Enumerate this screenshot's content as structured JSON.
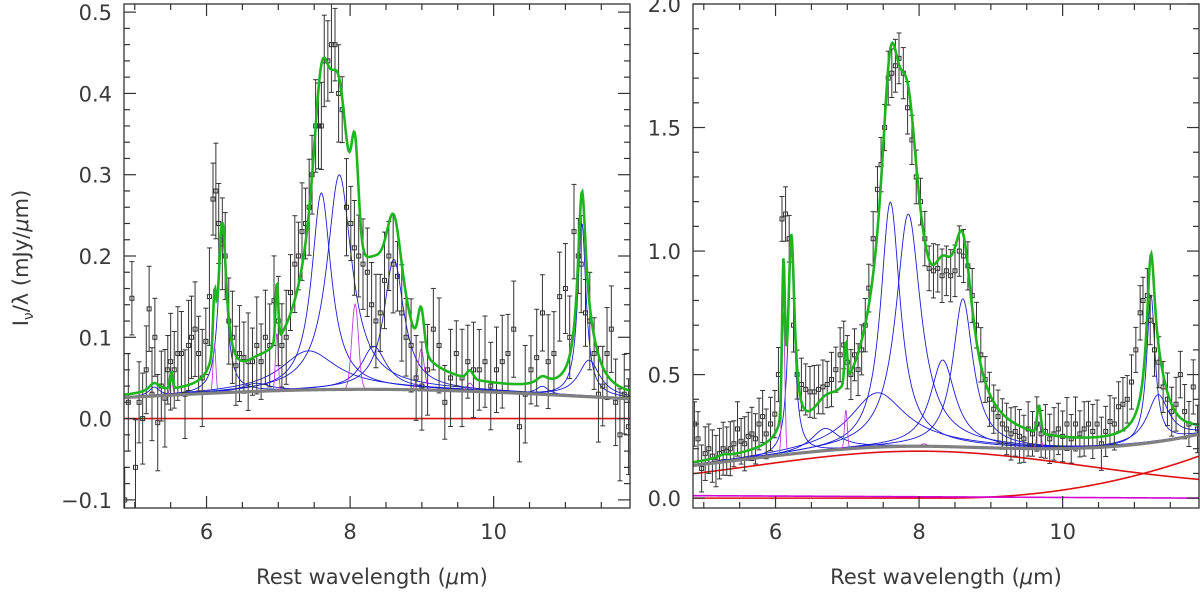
{
  "figure": {
    "ylabel_prefix": "I",
    "ylabel_nu": "ν",
    "ylabel_mid": "/λ (mJy/",
    "ylabel_mu": "μ",
    "ylabel_end": "m)",
    "xlabel_text": "Rest wavelength (",
    "xlabel_mu": "μ",
    "xlabel_end": "m)"
  },
  "colors": {
    "total_fit": "#1fb51f",
    "continuum_total": "#808080",
    "continuum_component": "#e01010",
    "pah_feature": "#1c1cd8",
    "gas_line": "#b640d8",
    "stellar_component": "#d400d4",
    "data": "#333333"
  },
  "chart_data": [
    {
      "type": "line",
      "name": "left-panel",
      "xlim": [
        4.85,
        11.9
      ],
      "ylim": [
        -0.11,
        0.51
      ],
      "xticks": [
        6,
        8,
        10
      ],
      "yticks": [
        -0.1,
        0.0,
        0.1,
        0.2,
        0.3,
        0.4,
        0.5
      ],
      "ytick_labels": [
        "−0.1",
        "0.0",
        "0.1",
        "0.2",
        "0.3",
        "0.4",
        "0.5"
      ],
      "xtick_labels": [
        "6",
        "8",
        "10"
      ],
      "continuum_components": [
        {
          "name": "hot-dust",
          "flat": 0.0
        }
      ],
      "continuum_total": {
        "base": 0.012,
        "amp": 0.024,
        "center": 8.2,
        "width": 3.2
      },
      "pah_features": [
        {
          "center": 5.27,
          "height": 0.011,
          "fwhm": 0.18
        },
        {
          "center": 6.22,
          "height": 0.195,
          "fwhm": 0.14
        },
        {
          "center": 6.69,
          "height": 0.01,
          "fwhm": 0.47
        },
        {
          "center": 7.42,
          "height": 0.048,
          "fwhm": 0.94
        },
        {
          "center": 7.6,
          "height": 0.242,
          "fwhm": 0.33
        },
        {
          "center": 7.85,
          "height": 0.264,
          "fwhm": 0.42
        },
        {
          "center": 8.33,
          "height": 0.053,
          "fwhm": 0.42
        },
        {
          "center": 8.61,
          "height": 0.16,
          "fwhm": 0.34
        },
        {
          "center": 10.68,
          "height": 0.01,
          "fwhm": 0.21
        },
        {
          "center": 11.23,
          "height": 0.213,
          "fwhm": 0.14
        },
        {
          "center": 11.33,
          "height": 0.045,
          "fwhm": 0.36
        }
      ],
      "gas_lines": [
        {
          "center": 5.51,
          "height": 0.02,
          "fwhm": 0.045
        },
        {
          "center": 6.11,
          "height": 0.06,
          "fwhm": 0.045
        },
        {
          "center": 6.98,
          "height": 0.072,
          "fwhm": 0.045
        },
        {
          "center": 8.07,
          "height": 0.105,
          "fwhm": 0.11
        },
        {
          "center": 8.99,
          "height": 0.05,
          "fwhm": 0.1
        },
        {
          "center": 9.67,
          "height": 0.01,
          "fwhm": 0.1
        }
      ],
      "data_points": [
        [
          4.86,
          -0.1
        ],
        [
          4.91,
          0.02
        ],
        [
          4.96,
          0.148
        ],
        [
          5.01,
          -0.06
        ],
        [
          5.06,
          0.02
        ],
        [
          5.11,
          0.0
        ],
        [
          5.16,
          0.06
        ],
        [
          5.2,
          0.135
        ],
        [
          5.24,
          0.03
        ],
        [
          5.28,
          0.1
        ],
        [
          5.32,
          -0.005
        ],
        [
          5.37,
          0.04
        ],
        [
          5.42,
          0.025
        ],
        [
          5.46,
          0.06
        ],
        [
          5.5,
          0.07
        ],
        [
          5.55,
          0.06
        ],
        [
          5.6,
          0.08
        ],
        [
          5.65,
          0.08
        ],
        [
          5.7,
          0.03
        ],
        [
          5.75,
          0.09
        ],
        [
          5.79,
          0.1
        ],
        [
          5.84,
          0.11
        ],
        [
          5.89,
          0.08
        ],
        [
          5.94,
          0.05
        ],
        [
          5.99,
          0.095
        ],
        [
          6.04,
          0.15
        ],
        [
          6.09,
          0.27
        ],
        [
          6.13,
          0.28
        ],
        [
          6.17,
          0.24
        ],
        [
          6.22,
          0.215
        ],
        [
          6.26,
          0.2
        ],
        [
          6.31,
          0.12
        ],
        [
          6.36,
          0.1
        ],
        [
          6.41,
          0.065
        ],
        [
          6.46,
          0.08
        ],
        [
          6.52,
          0.075
        ],
        [
          6.58,
          0.07
        ],
        [
          6.64,
          0.07
        ],
        [
          6.7,
          0.09
        ],
        [
          6.76,
          0.07
        ],
        [
          6.82,
          0.1
        ],
        [
          6.88,
          0.09
        ],
        [
          6.94,
          0.145
        ],
        [
          7.0,
          0.12
        ],
        [
          7.05,
          0.09
        ],
        [
          7.11,
          0.1
        ],
        [
          7.17,
          0.155
        ],
        [
          7.23,
          0.19
        ],
        [
          7.28,
          0.2
        ],
        [
          7.33,
          0.23
        ],
        [
          7.38,
          0.24
        ],
        [
          7.43,
          0.26
        ],
        [
          7.47,
          0.3
        ],
        [
          7.52,
          0.36
        ],
        [
          7.56,
          0.36
        ],
        [
          7.6,
          0.36
        ],
        [
          7.64,
          0.44
        ],
        [
          7.69,
          0.44
        ],
        [
          7.74,
          0.46
        ],
        [
          7.79,
          0.46
        ],
        [
          7.84,
          0.4
        ],
        [
          7.89,
          0.38
        ],
        [
          7.95,
          0.26
        ],
        [
          8.01,
          0.24
        ],
        [
          8.06,
          0.21
        ],
        [
          8.12,
          0.2
        ],
        [
          8.18,
          0.19
        ],
        [
          8.24,
          0.18
        ],
        [
          8.3,
          0.14
        ],
        [
          8.36,
          0.12
        ],
        [
          8.42,
          0.13
        ],
        [
          8.48,
          0.17
        ],
        [
          8.54,
          0.2
        ],
        [
          8.6,
          0.19
        ],
        [
          8.66,
          0.175
        ],
        [
          8.72,
          0.13
        ],
        [
          8.78,
          0.1
        ],
        [
          8.85,
          0.09
        ],
        [
          8.92,
          0.05
        ],
        [
          9.0,
          0.04
        ],
        [
          9.08,
          0.06
        ],
        [
          9.16,
          0.11
        ],
        [
          9.24,
          0.09
        ],
        [
          9.32,
          0.02
        ],
        [
          9.4,
          0.05
        ],
        [
          9.48,
          0.08
        ],
        [
          9.56,
          0.05
        ],
        [
          9.64,
          0.07
        ],
        [
          9.72,
          0.06
        ],
        [
          9.8,
          0.06
        ],
        [
          9.88,
          0.07
        ],
        [
          9.96,
          0.04
        ],
        [
          10.04,
          0.06
        ],
        [
          10.12,
          0.07
        ],
        [
          10.2,
          0.08
        ],
        [
          10.28,
          0.11
        ],
        [
          10.36,
          -0.01
        ],
        [
          10.44,
          0.03
        ],
        [
          10.52,
          0.06
        ],
        [
          10.6,
          0.075
        ],
        [
          10.68,
          0.13
        ],
        [
          10.76,
          0.07
        ],
        [
          10.84,
          0.08
        ],
        [
          10.92,
          0.15
        ],
        [
          11.0,
          0.16
        ],
        [
          11.06,
          0.1
        ],
        [
          11.12,
          0.23
        ],
        [
          11.18,
          0.2
        ],
        [
          11.22,
          0.19
        ],
        [
          11.28,
          0.13
        ],
        [
          11.34,
          0.12
        ],
        [
          11.4,
          0.08
        ],
        [
          11.46,
          0.03
        ],
        [
          11.52,
          0.04
        ],
        [
          11.58,
          0.08
        ],
        [
          11.64,
          0.11
        ],
        [
          11.7,
          0.02
        ],
        [
          11.76,
          -0.02
        ],
        [
          11.82,
          0.03
        ],
        [
          11.88,
          -0.01
        ]
      ]
    },
    {
      "type": "line",
      "name": "right-panel",
      "xlim": [
        4.85,
        11.9
      ],
      "ylim": [
        -0.04,
        2.0
      ],
      "xticks": [
        6,
        8,
        10
      ],
      "yticks": [
        0.0,
        0.5,
        1.0,
        1.5,
        2.0
      ],
      "ytick_labels": [
        "0.0",
        "0.5",
        "1.0",
        "1.5",
        "2.0"
      ],
      "xtick_labels": [
        "6",
        "8",
        "10"
      ],
      "continuum_components": [
        {
          "name": "warm-dust",
          "bump": {
            "base": 0.04,
            "amp": 0.15,
            "center": 8.0,
            "width": 2.3
          }
        },
        {
          "name": "hot-dust",
          "rise": {
            "start": 8.3,
            "amp": 0.17,
            "end": 11.9
          }
        }
      ],
      "stellar_line": {
        "start": 0.01,
        "end": 0.0
      },
      "continuum_total": {
        "base": 0.06,
        "amp": 0.15,
        "center": 8.0,
        "width": 2.6,
        "tail": 0.15
      },
      "pah_features": [
        {
          "center": 5.27,
          "height": 0.01,
          "fwhm": 0.18
        },
        {
          "center": 6.22,
          "height": 0.82,
          "fwhm": 0.11
        },
        {
          "center": 6.69,
          "height": 0.09,
          "fwhm": 0.47
        },
        {
          "center": 7.42,
          "height": 0.22,
          "fwhm": 0.94
        },
        {
          "center": 7.6,
          "height": 0.99,
          "fwhm": 0.33
        },
        {
          "center": 7.85,
          "height": 0.94,
          "fwhm": 0.42
        },
        {
          "center": 8.33,
          "height": 0.35,
          "fwhm": 0.42
        },
        {
          "center": 8.61,
          "height": 0.6,
          "fwhm": 0.34
        },
        {
          "center": 11.23,
          "height": 0.6,
          "fwhm": 0.14
        },
        {
          "center": 11.33,
          "height": 0.19,
          "fwhm": 0.36
        }
      ],
      "gas_lines": [
        {
          "center": 6.11,
          "height": 0.58,
          "fwhm": 0.045
        },
        {
          "center": 6.98,
          "height": 0.16,
          "fwhm": 0.045
        },
        {
          "center": 8.07,
          "height": 0.01,
          "fwhm": 0.1
        },
        {
          "center": 9.67,
          "height": 0.11,
          "fwhm": 0.06
        }
      ],
      "data_points": [
        [
          4.87,
          0.3
        ],
        [
          4.92,
          0.24
        ],
        [
          4.97,
          0.12
        ],
        [
          5.02,
          0.18
        ],
        [
          5.07,
          0.2
        ],
        [
          5.12,
          0.17
        ],
        [
          5.17,
          0.15
        ],
        [
          5.22,
          0.18
        ],
        [
          5.27,
          0.2
        ],
        [
          5.32,
          0.19
        ],
        [
          5.37,
          0.2
        ],
        [
          5.42,
          0.22
        ],
        [
          5.47,
          0.28
        ],
        [
          5.52,
          0.23
        ],
        [
          5.57,
          0.22
        ],
        [
          5.62,
          0.25
        ],
        [
          5.67,
          0.26
        ],
        [
          5.72,
          0.24
        ],
        [
          5.77,
          0.3
        ],
        [
          5.82,
          0.33
        ],
        [
          5.87,
          0.26
        ],
        [
          5.93,
          0.3
        ],
        [
          5.99,
          0.34
        ],
        [
          6.04,
          0.5
        ],
        [
          6.09,
          1.13
        ],
        [
          6.14,
          1.15
        ],
        [
          6.19,
          1.05
        ],
        [
          6.25,
          0.7
        ],
        [
          6.3,
          0.5
        ],
        [
          6.36,
          0.46
        ],
        [
          6.42,
          0.44
        ],
        [
          6.48,
          0.43
        ],
        [
          6.54,
          0.43
        ],
        [
          6.6,
          0.44
        ],
        [
          6.66,
          0.45
        ],
        [
          6.72,
          0.46
        ],
        [
          6.78,
          0.48
        ],
        [
          6.84,
          0.52
        ],
        [
          6.9,
          0.58
        ],
        [
          6.95,
          0.62
        ],
        [
          7.0,
          0.55
        ],
        [
          7.05,
          0.5
        ],
        [
          7.1,
          0.58
        ],
        [
          7.15,
          0.52
        ],
        [
          7.2,
          0.6
        ],
        [
          7.25,
          0.7
        ],
        [
          7.3,
          0.85
        ],
        [
          7.36,
          1.05
        ],
        [
          7.42,
          1.25
        ],
        [
          7.47,
          1.35
        ],
        [
          7.52,
          1.5
        ],
        [
          7.57,
          1.7
        ],
        [
          7.62,
          1.72
        ],
        [
          7.67,
          1.75
        ],
        [
          7.72,
          1.78
        ],
        [
          7.78,
          1.72
        ],
        [
          7.84,
          1.58
        ],
        [
          7.9,
          1.45
        ],
        [
          7.96,
          1.3
        ],
        [
          8.02,
          1.2
        ],
        [
          8.08,
          1.05
        ],
        [
          8.14,
          0.93
        ],
        [
          8.2,
          0.92
        ],
        [
          8.26,
          0.93
        ],
        [
          8.32,
          0.9
        ],
        [
          8.38,
          0.92
        ],
        [
          8.44,
          0.9
        ],
        [
          8.5,
          0.92
        ],
        [
          8.56,
          1.0
        ],
        [
          8.62,
          0.98
        ],
        [
          8.68,
          0.94
        ],
        [
          8.74,
          0.82
        ],
        [
          8.8,
          0.7
        ],
        [
          8.86,
          0.58
        ],
        [
          8.92,
          0.48
        ],
        [
          8.98,
          0.4
        ],
        [
          9.04,
          0.36
        ],
        [
          9.1,
          0.33
        ],
        [
          9.16,
          0.3
        ],
        [
          9.22,
          0.28
        ],
        [
          9.28,
          0.26
        ],
        [
          9.34,
          0.27
        ],
        [
          9.4,
          0.25
        ],
        [
          9.46,
          0.24
        ],
        [
          9.52,
          0.28
        ],
        [
          9.58,
          0.26
        ],
        [
          9.64,
          0.3
        ],
        [
          9.7,
          0.26
        ],
        [
          9.76,
          0.27
        ],
        [
          9.82,
          0.24
        ],
        [
          9.88,
          0.26
        ],
        [
          9.94,
          0.28
        ],
        [
          10.0,
          0.25
        ],
        [
          10.06,
          0.3
        ],
        [
          10.12,
          0.24
        ],
        [
          10.18,
          0.3
        ],
        [
          10.24,
          0.26
        ],
        [
          10.3,
          0.28
        ],
        [
          10.36,
          0.3
        ],
        [
          10.42,
          0.27
        ],
        [
          10.48,
          0.3
        ],
        [
          10.54,
          0.22
        ],
        [
          10.6,
          0.27
        ],
        [
          10.66,
          0.31
        ],
        [
          10.72,
          0.3
        ],
        [
          10.78,
          0.37
        ],
        [
          10.84,
          0.38
        ],
        [
          10.9,
          0.4
        ],
        [
          10.96,
          0.47
        ],
        [
          11.02,
          0.6
        ],
        [
          11.08,
          0.75
        ],
        [
          11.12,
          0.8
        ],
        [
          11.18,
          0.82
        ],
        [
          11.22,
          0.72
        ],
        [
          11.28,
          0.6
        ],
        [
          11.34,
          0.55
        ],
        [
          11.4,
          0.45
        ],
        [
          11.46,
          0.4
        ],
        [
          11.52,
          0.35
        ],
        [
          11.58,
          0.38
        ],
        [
          11.64,
          0.5
        ],
        [
          11.7,
          0.35
        ],
        [
          11.76,
          0.3
        ],
        [
          11.82,
          0.45
        ],
        [
          11.88,
          0.28
        ]
      ]
    }
  ]
}
